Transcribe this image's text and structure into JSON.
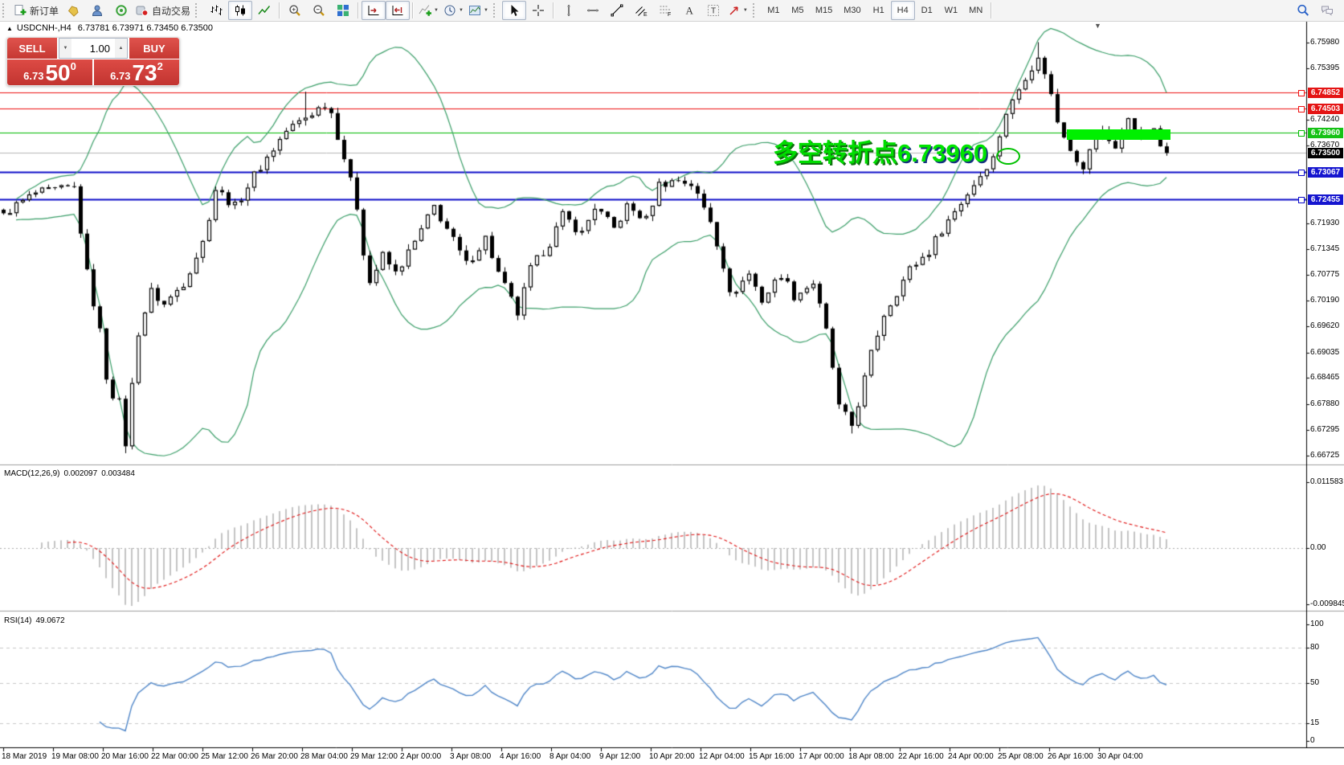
{
  "toolbar": {
    "toolbars": [
      {
        "name": "standard",
        "groups": [
          [
            {
              "id": "new-order",
              "icon": "neworder",
              "label": "新订单"
            },
            {
              "id": "profiles",
              "icon": "profiles"
            },
            {
              "id": "metaeditor",
              "icon": "metaeditor"
            },
            {
              "id": "signals",
              "icon": "signals"
            },
            {
              "id": "auto-trading",
              "icon": "autotrade",
              "label": "自动交易"
            }
          ]
        ]
      },
      {
        "name": "charts",
        "groups": [
          [
            {
              "id": "bar-chart",
              "icon": "bars"
            },
            {
              "id": "candlestick-chart",
              "icon": "candles",
              "selected": true
            },
            {
              "id": "line-chart",
              "icon": "linechart"
            }
          ],
          [
            {
              "id": "zoom-in",
              "icon": "zoomin"
            },
            {
              "id": "zoom-out",
              "icon": "zoomout"
            },
            {
              "id": "tile-windows",
              "icon": "tile"
            }
          ],
          [
            {
              "id": "auto-scroll",
              "icon": "autoscroll",
              "selected": true
            },
            {
              "id": "chart-shift",
              "icon": "shift",
              "selected": true
            }
          ],
          [
            {
              "id": "indicators",
              "icon": "indicators",
              "caret": true
            },
            {
              "id": "periods",
              "icon": "periods",
              "caret": true
            },
            {
              "id": "templates",
              "icon": "template",
              "caret": true
            }
          ]
        ]
      },
      {
        "name": "line-studies",
        "groups": [
          [
            {
              "id": "cursor",
              "icon": "cursor",
              "selected": true
            },
            {
              "id": "crosshair",
              "icon": "crosshair"
            }
          ],
          [
            {
              "id": "vertical-line",
              "icon": "vline"
            },
            {
              "id": "horizontal-line",
              "icon": "hline"
            },
            {
              "id": "trendline",
              "icon": "trendline"
            },
            {
              "id": "equidistant-channel",
              "icon": "channel"
            },
            {
              "id": "fibonacci-retracement",
              "icon": "fibo"
            },
            {
              "id": "text",
              "icon": "textA"
            },
            {
              "id": "text-label",
              "icon": "labelT"
            },
            {
              "id": "arrows",
              "icon": "arrows",
              "caret": true
            }
          ]
        ]
      },
      {
        "name": "timeframes",
        "groups": [
          [
            {
              "id": "tf-m1",
              "label": "M1"
            },
            {
              "id": "tf-m5",
              "label": "M5"
            },
            {
              "id": "tf-m15",
              "label": "M15"
            },
            {
              "id": "tf-m30",
              "label": "M30"
            },
            {
              "id": "tf-h1",
              "label": "H1"
            },
            {
              "id": "tf-h4",
              "label": "H4",
              "selected": true
            },
            {
              "id": "tf-d1",
              "label": "D1"
            },
            {
              "id": "tf-w1",
              "label": "W1"
            },
            {
              "id": "tf-mn",
              "label": "MN"
            }
          ]
        ]
      }
    ],
    "right": [
      {
        "id": "search",
        "icon": "search"
      },
      {
        "id": "chat",
        "icon": "chat"
      }
    ]
  },
  "chart": {
    "collapse_arrow": "▲",
    "symbol_period": "USDCNH-,H4",
    "ohlc": "6.73781 6.73971 6.73450 6.73500"
  },
  "one_click": {
    "sell_label": "SELL",
    "buy_label": "BUY",
    "volume": "1.00",
    "sell_price_prefix": "6.73",
    "sell_price_big": "50",
    "sell_price_sup": "0",
    "buy_price_prefix": "6.73",
    "buy_price_big": "73",
    "buy_price_sup": "2"
  },
  "annotation": {
    "text_cn": "多空转折点",
    "text_num": "6.73960"
  },
  "indicators": {
    "macd": {
      "label": "MACD(12,26,9)",
      "value1": "0.002097",
      "value2": "0.003484",
      "axis": [
        "0.011583",
        "0.00",
        "-0.009845"
      ]
    },
    "rsi": {
      "label": "RSI(14)",
      "value": "49.0672",
      "axis": [
        "100",
        "80",
        "50",
        "15",
        "0"
      ],
      "levels": [
        80,
        50,
        15
      ]
    }
  },
  "chart_data": {
    "type": "candlestick",
    "symbol": "USDCNH-",
    "timeframe": "H4",
    "price_range": {
      "top": 6.76205,
      "bottom": 6.66635
    },
    "price_axis_ticks": [
      "6.75980",
      "6.75395",
      "6.74240",
      "6.73670",
      "6.71930",
      "6.71345",
      "6.70775",
      "6.70190",
      "6.69620",
      "6.69035",
      "6.68465",
      "6.67880",
      "6.67295",
      "6.66725"
    ],
    "price_badges": [
      {
        "value": "6.74852",
        "color": "#e41414"
      },
      {
        "value": "6.74503",
        "color": "#e41414"
      },
      {
        "value": "6.73960",
        "color": "#15c215"
      },
      {
        "value": "6.73500",
        "color": "#000000"
      },
      {
        "value": "6.73067",
        "color": "#1515cf"
      },
      {
        "value": "6.72455",
        "color": "#1515cf"
      }
    ],
    "hlines": [
      {
        "price": 6.74852,
        "color": "#ee1111",
        "width": 1
      },
      {
        "price": 6.74503,
        "color": "#ee1111",
        "width": 1
      },
      {
        "price": 6.7396,
        "color": "#00ba00",
        "width": 1
      },
      {
        "price": 6.73067,
        "color": "#0a0ac8",
        "width": 2
      },
      {
        "price": 6.72455,
        "color": "#0a0ac8",
        "width": 2
      }
    ],
    "current_price": 6.735,
    "bars": 182,
    "price_path_anchors": [
      [
        0,
        6.7215
      ],
      [
        5,
        6.726
      ],
      [
        11,
        6.7272
      ],
      [
        13,
        6.708
      ],
      [
        15,
        6.695
      ],
      [
        16,
        6.685
      ],
      [
        17,
        6.681
      ],
      [
        18,
        6.679
      ],
      [
        19,
        6.67
      ],
      [
        20,
        6.683
      ],
      [
        21,
        6.695
      ],
      [
        23,
        6.704
      ],
      [
        25,
        6.701
      ],
      [
        28,
        6.706
      ],
      [
        31,
        6.715
      ],
      [
        33,
        6.727
      ],
      [
        36,
        6.723
      ],
      [
        39,
        6.73
      ],
      [
        41,
        6.734
      ],
      [
        44,
        6.74
      ],
      [
        47,
        6.743
      ],
      [
        50,
        6.746
      ],
      [
        51,
        6.744
      ],
      [
        53,
        6.734
      ],
      [
        55,
        6.723
      ],
      [
        56,
        6.713
      ],
      [
        57,
        6.706
      ],
      [
        59,
        6.712
      ],
      [
        61,
        6.708
      ],
      [
        64,
        6.715
      ],
      [
        67,
        6.723
      ],
      [
        69,
        6.718
      ],
      [
        72,
        6.71
      ],
      [
        75,
        6.716
      ],
      [
        77,
        6.708
      ],
      [
        80,
        6.699
      ],
      [
        82,
        6.709
      ],
      [
        85,
        6.715
      ],
      [
        87,
        6.721
      ],
      [
        90,
        6.717
      ],
      [
        92,
        6.723
      ],
      [
        95,
        6.718
      ],
      [
        97,
        6.723
      ],
      [
        100,
        6.72
      ],
      [
        102,
        6.728
      ],
      [
        105,
        6.729
      ],
      [
        107,
        6.728
      ],
      [
        110,
        6.72
      ],
      [
        112,
        6.71
      ],
      [
        113,
        6.703
      ],
      [
        116,
        6.708
      ],
      [
        118,
        6.702
      ],
      [
        121,
        6.708
      ],
      [
        123,
        6.703
      ],
      [
        126,
        6.706
      ],
      [
        128,
        6.695
      ],
      [
        129,
        6.687
      ],
      [
        130,
        6.678
      ],
      [
        132,
        6.674
      ],
      [
        133,
        6.679
      ],
      [
        135,
        6.69
      ],
      [
        137,
        6.699
      ],
      [
        139,
        6.704
      ],
      [
        141,
        6.709
      ],
      [
        144,
        6.713
      ],
      [
        146,
        6.718
      ],
      [
        149,
        6.724
      ],
      [
        151,
        6.728
      ],
      [
        154,
        6.734
      ],
      [
        156,
        6.744
      ],
      [
        159,
        6.752
      ],
      [
        161,
        6.756
      ],
      [
        162,
        6.753
      ],
      [
        163,
        6.748
      ],
      [
        164,
        6.742
      ],
      [
        166,
        6.736
      ],
      [
        168,
        6.731
      ],
      [
        169,
        6.736
      ],
      [
        171,
        6.74
      ],
      [
        173,
        6.736
      ],
      [
        175,
        6.743
      ],
      [
        177,
        6.738
      ],
      [
        179,
        6.74
      ],
      [
        180,
        6.7365
      ],
      [
        181,
        6.735
      ]
    ],
    "forced_wicks": {
      "19": {
        "low": 6.6678
      },
      "47": {
        "high": 6.7487
      },
      "132": {
        "low": 6.6722
      },
      "161": {
        "high": 6.7598
      }
    },
    "bollinger": {
      "period": 20,
      "deviation": 2,
      "color": "#3a9e68"
    },
    "macd": {
      "fast": 12,
      "slow": 26,
      "signal": 9,
      "hist_color": "#c4c4c4",
      "signal_color": "#e01010"
    },
    "rsi": {
      "period": 14,
      "color": "#4f86c8",
      "level_color": "#c8c8c8"
    },
    "highlight_objects": {
      "rectangle": {
        "color": "#00f000",
        "price_zone": "6.73960"
      },
      "ellipse": {
        "color": "#00c000"
      }
    },
    "time_labels": [
      "18 Mar 2019",
      "19 Mar 08:00",
      "20 Mar 16:00",
      "22 Mar 00:00",
      "25 Mar 12:00",
      "26 Mar 20:00",
      "28 Mar 04:00",
      "29 Mar 12:00",
      "2 Apr 00:00",
      "3 Apr 08:00",
      "4 Apr 16:00",
      "8 Apr 04:00",
      "9 Apr 12:00",
      "10 Apr 20:00",
      "12 Apr 04:00",
      "15 Apr 16:00",
      "17 Apr 00:00",
      "18 Apr 08:00",
      "22 Apr 16:00",
      "24 Apr 00:00",
      "25 Apr 08:00",
      "26 Apr 16:00",
      "30 Apr 04:00"
    ]
  }
}
